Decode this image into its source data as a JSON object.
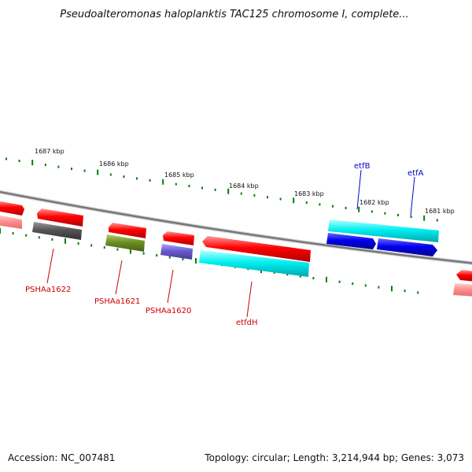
{
  "title": "Pseudoalteromonas haloplanktis TAC125 chromosome I, complete...",
  "scale_labels": [
    "1687 kbp",
    "1686 kbp",
    "1685 kbp",
    "1684 kbp",
    "1683 kbp",
    "1682 kbp",
    "1681 kbp"
  ],
  "gene_labels": {
    "PSHAa1622": "PSHAa1622",
    "PSHAa1621": "PSHAa1621",
    "PSHAa1620": "PSHAa1620",
    "etfdH": "etfdH",
    "etfB": "etfB",
    "etfA": "etfA"
  },
  "footer": {
    "accession": "Accession: NC_007481",
    "info": "Topology: circular; Length: 3,214,944 bp; Genes: 3,073"
  },
  "colors": {
    "red_gene": "#ff0000",
    "cyan_gene": "#00ffff",
    "blue_gene": "#0000ee",
    "gray_gene": "#555555",
    "olive_gene": "#6b8e23",
    "purple_gene": "#6a5acd",
    "pink_gene": "#ff8080",
    "tick_green": "#008000",
    "backbone": "#777777",
    "label_red": "#cc0000",
    "label_blue": "#0000cc"
  }
}
